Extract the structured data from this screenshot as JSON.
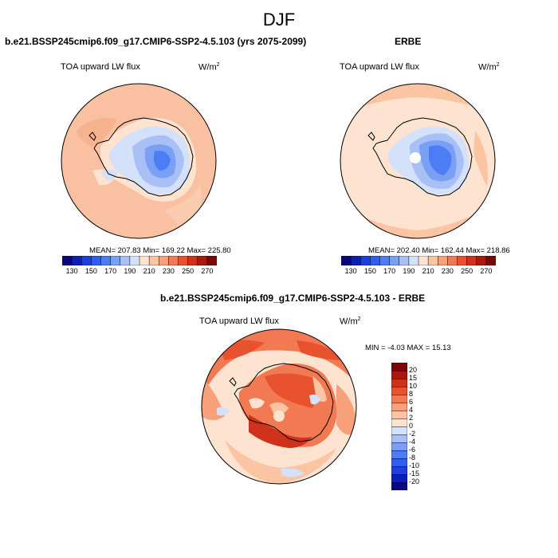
{
  "figure": {
    "title": "DJF"
  },
  "panels": {
    "model": {
      "title": "b.e21.BSSP245cmip6.f09_g17.CMIP6-SSP2-4.5.103 (yrs 2075-2099)",
      "variable": "TOA upward LW flux",
      "units_base": "W/m",
      "units_exp": "2",
      "stats": "MEAN= 207.83  Min= 169.22  Max= 225.80"
    },
    "obs": {
      "title": "ERBE",
      "variable": "TOA upward LW flux",
      "units_base": "W/m",
      "units_exp": "2",
      "stats": "MEAN= 202.40  Min= 162.44  Max= 218.86"
    },
    "diff": {
      "title": "b.e21.BSSP245cmip6.f09_g17.CMIP6-SSP2-4.5.103 - ERBE",
      "variable": "TOA upward LW flux",
      "units_base": "W/m",
      "units_exp": "2",
      "stats": "MIN =  -4.03 MAX =  15.13"
    }
  },
  "chart_data": [
    {
      "type": "heatmap",
      "projection": "south-polar-stereographic",
      "title": "b.e21.BSSP245cmip6.f09_g17.CMIP6-SSP2-4.5.103 (yrs 2075-2099)",
      "variable": "TOA upward LW flux",
      "units": "W/m2",
      "mean": 207.83,
      "min": 169.22,
      "max": 225.8,
      "colorbar": {
        "orientation": "horizontal",
        "levels": [
          130,
          140,
          150,
          160,
          170,
          180,
          190,
          200,
          210,
          220,
          230,
          240,
          250,
          260,
          270
        ],
        "tick_labels": [
          "130",
          "150",
          "170",
          "190",
          "210",
          "230",
          "250",
          "270"
        ],
        "colors": [
          "#08087a",
          "#0d1fb5",
          "#1c3fde",
          "#2f5ef0",
          "#4d7df5",
          "#7aa0f5",
          "#a8c0f5",
          "#d3e2fa",
          "#fde3d0",
          "#fbc4a2",
          "#f7a07a",
          "#f27a52",
          "#e8522e",
          "#d0311a",
          "#a81a0c",
          "#7a0606"
        ]
      }
    },
    {
      "type": "heatmap",
      "projection": "south-polar-stereographic",
      "title": "ERBE",
      "variable": "TOA upward LW flux",
      "units": "W/m2",
      "mean": 202.4,
      "min": 162.44,
      "max": 218.86,
      "colorbar": {
        "orientation": "horizontal",
        "levels": [
          130,
          140,
          150,
          160,
          170,
          180,
          190,
          200,
          210,
          220,
          230,
          240,
          250,
          260,
          270
        ],
        "tick_labels": [
          "130",
          "150",
          "170",
          "190",
          "210",
          "230",
          "250",
          "270"
        ],
        "colors": [
          "#08087a",
          "#0d1fb5",
          "#1c3fde",
          "#2f5ef0",
          "#4d7df5",
          "#7aa0f5",
          "#a8c0f5",
          "#d3e2fa",
          "#fde3d0",
          "#fbc4a2",
          "#f7a07a",
          "#f27a52",
          "#e8522e",
          "#d0311a",
          "#a81a0c",
          "#7a0606"
        ]
      }
    },
    {
      "type": "heatmap",
      "projection": "south-polar-stereographic",
      "title": "b.e21.BSSP245cmip6.f09_g17.CMIP6-SSP2-4.5.103 - ERBE",
      "variable": "TOA upward LW flux",
      "units": "W/m2",
      "min": -4.03,
      "max": 15.13,
      "colorbar": {
        "orientation": "vertical",
        "levels": [
          -20,
          -15,
          -10,
          -8,
          -6,
          -4,
          -2,
          0,
          2,
          4,
          6,
          8,
          10,
          15,
          20
        ],
        "tick_labels": [
          "-20",
          "-15",
          "-10",
          "-8",
          "-6",
          "-4",
          "-2",
          "0",
          "2",
          "4",
          "6",
          "8",
          "10",
          "15",
          "20"
        ],
        "colors": [
          "#08087a",
          "#0d1fb5",
          "#1c3fde",
          "#2f5ef0",
          "#4d7df5",
          "#7aa0f5",
          "#a8c0f5",
          "#d3e2fa",
          "#fde3d0",
          "#fbc4a2",
          "#f7a07a",
          "#f27a52",
          "#e8522e",
          "#d0311a",
          "#a81a0c",
          "#7a0606"
        ]
      }
    }
  ]
}
